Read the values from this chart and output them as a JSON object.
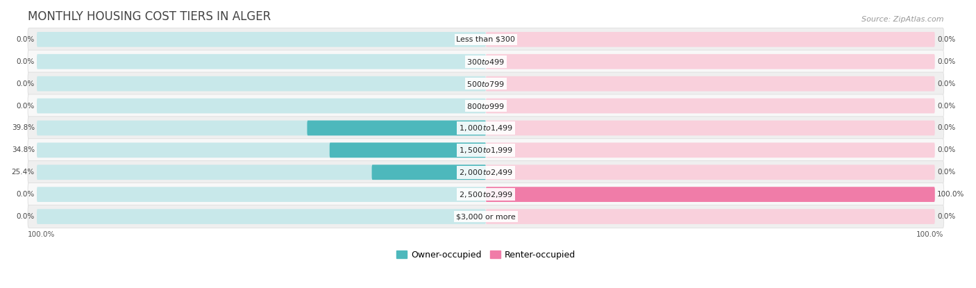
{
  "title": "MONTHLY HOUSING COST TIERS IN ALGER",
  "source": "Source: ZipAtlas.com",
  "categories": [
    "Less than $300",
    "$300 to $499",
    "$500 to $799",
    "$800 to $999",
    "$1,000 to $1,499",
    "$1,500 to $1,999",
    "$2,000 to $2,499",
    "$2,500 to $2,999",
    "$3,000 or more"
  ],
  "owner_values": [
    0.0,
    0.0,
    0.0,
    0.0,
    39.8,
    34.8,
    25.4,
    0.0,
    0.0
  ],
  "renter_values": [
    0.0,
    0.0,
    0.0,
    0.0,
    0.0,
    0.0,
    0.0,
    100.0,
    0.0
  ],
  "owner_color": "#4db8bc",
  "renter_color": "#f07ca8",
  "owner_label": "Owner-occupied",
  "renter_label": "Renter-occupied",
  "axis_left_label": "100.0%",
  "axis_right_label": "100.0%",
  "bar_bg_owner": "#c8e8ea",
  "bar_bg_renter": "#f9d0dc",
  "row_bg_even": "#efefef",
  "row_bg_odd": "#f8f8f8",
  "row_edge_color": "#dddddd",
  "xlim": 100,
  "title_fontsize": 12,
  "source_fontsize": 8,
  "cat_fontsize": 8,
  "value_fontsize": 7.5,
  "legend_fontsize": 9
}
